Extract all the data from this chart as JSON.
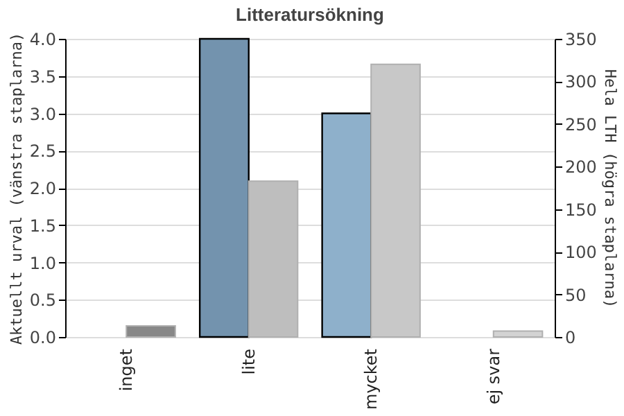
{
  "chart_data": {
    "type": "bar",
    "title": "Litteratursökning",
    "ylabel": "Aktuellt urval (vänstra staplarna)",
    "y2label": "Hela LTH (högra staplarna)",
    "categories": [
      "inget",
      "lite",
      "mycket",
      "ej svar"
    ],
    "series": [
      {
        "axis": "y",
        "colors": [
          "#7393ae",
          "#7393ae",
          "#8eb0cb",
          "#8eb0cb"
        ],
        "values": [
          0,
          4.0,
          3.0,
          0
        ]
      },
      {
        "axis": "y2",
        "colors": [
          "#888888",
          "#bebebe",
          "#c8c8c8",
          "#d3d3d3"
        ],
        "values": [
          13,
          183,
          320,
          7
        ]
      }
    ],
    "ylim": [
      0,
      4
    ],
    "yticks": [
      {
        "value": 0,
        "label": "0.0"
      },
      {
        "value": 0.5,
        "label": "0.5"
      },
      {
        "value": 1,
        "label": "1.0"
      },
      {
        "value": 1.5,
        "label": "1.5"
      },
      {
        "value": 2,
        "label": "2.0"
      },
      {
        "value": 2.5,
        "label": "2.5"
      },
      {
        "value": 3,
        "label": "3.0"
      },
      {
        "value": 3.5,
        "label": "3.5"
      },
      {
        "value": 4,
        "label": "4.0"
      }
    ],
    "y2lim": [
      0,
      350
    ],
    "y2ticks": [
      0,
      50,
      100,
      150,
      200,
      250,
      300,
      350
    ],
    "grid": "y"
  }
}
